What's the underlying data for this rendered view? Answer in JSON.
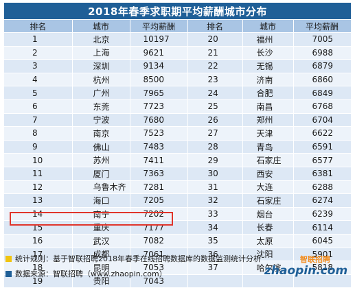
{
  "title": "2018年春季求职期平均薪酬城市分布",
  "headers": [
    "排名",
    "城市",
    "平均薪酬",
    "排名",
    "城市",
    "平均薪酬"
  ],
  "rows": [
    [
      "1",
      "北京",
      "10197",
      "20",
      "福州",
      "7005"
    ],
    [
      "2",
      "上海",
      "9621",
      "21",
      "长沙",
      "6988"
    ],
    [
      "3",
      "深圳",
      "9134",
      "22",
      "无锡",
      "6879"
    ],
    [
      "4",
      "杭州",
      "8500",
      "23",
      "济南",
      "6860"
    ],
    [
      "5",
      "广州",
      "7965",
      "24",
      "合肥",
      "6849"
    ],
    [
      "6",
      "东莞",
      "7723",
      "25",
      "南昌",
      "6768"
    ],
    [
      "7",
      "宁波",
      "7680",
      "26",
      "郑州",
      "6704"
    ],
    [
      "8",
      "南京",
      "7523",
      "27",
      "天津",
      "6622"
    ],
    [
      "9",
      "佛山",
      "7483",
      "28",
      "青岛",
      "6591"
    ],
    [
      "10",
      "苏州",
      "7411",
      "29",
      "石家庄",
      "6577"
    ],
    [
      "11",
      "厦门",
      "7363",
      "30",
      "西安",
      "6381"
    ],
    [
      "12",
      "乌鲁木齐",
      "7281",
      "31",
      "大连",
      "6288"
    ],
    [
      "13",
      "海口",
      "7205",
      "32",
      "石家庄",
      "6274"
    ],
    [
      "14",
      "南宁",
      "7202",
      "33",
      "烟台",
      "6239"
    ],
    [
      "15",
      "重庆",
      "7177",
      "34",
      "长春",
      "6114"
    ],
    [
      "16",
      "武汉",
      "7082",
      "35",
      "太原",
      "6045"
    ],
    [
      "17",
      "成都",
      "7061",
      "36",
      "沈阳",
      "5901"
    ],
    [
      "18",
      "昆明",
      "7053",
      "37",
      "哈尔滨",
      "5818"
    ],
    [
      "19",
      "贵阳",
      "7043",
      "",
      "",
      ""
    ]
  ],
  "footer": {
    "stat_rule": "统计规则：基于智联招聘2018年春季在线招聘数据库的数据监测统计分析",
    "source": "数据来源：智联招聘（www.zhaopin.com）"
  },
  "logo": {
    "text_main": "zhaopin.com",
    "text_cn": "智联招聘"
  },
  "colors": {
    "title_bg": "#1f5f97",
    "header_bg": "#a9c5e4",
    "row_odd": "#dde8f5",
    "row_even": "#edf3fa",
    "highlight_border": "#e0352b",
    "logo_orange": "#f28c1e",
    "logo_blue": "#1f5f97"
  }
}
